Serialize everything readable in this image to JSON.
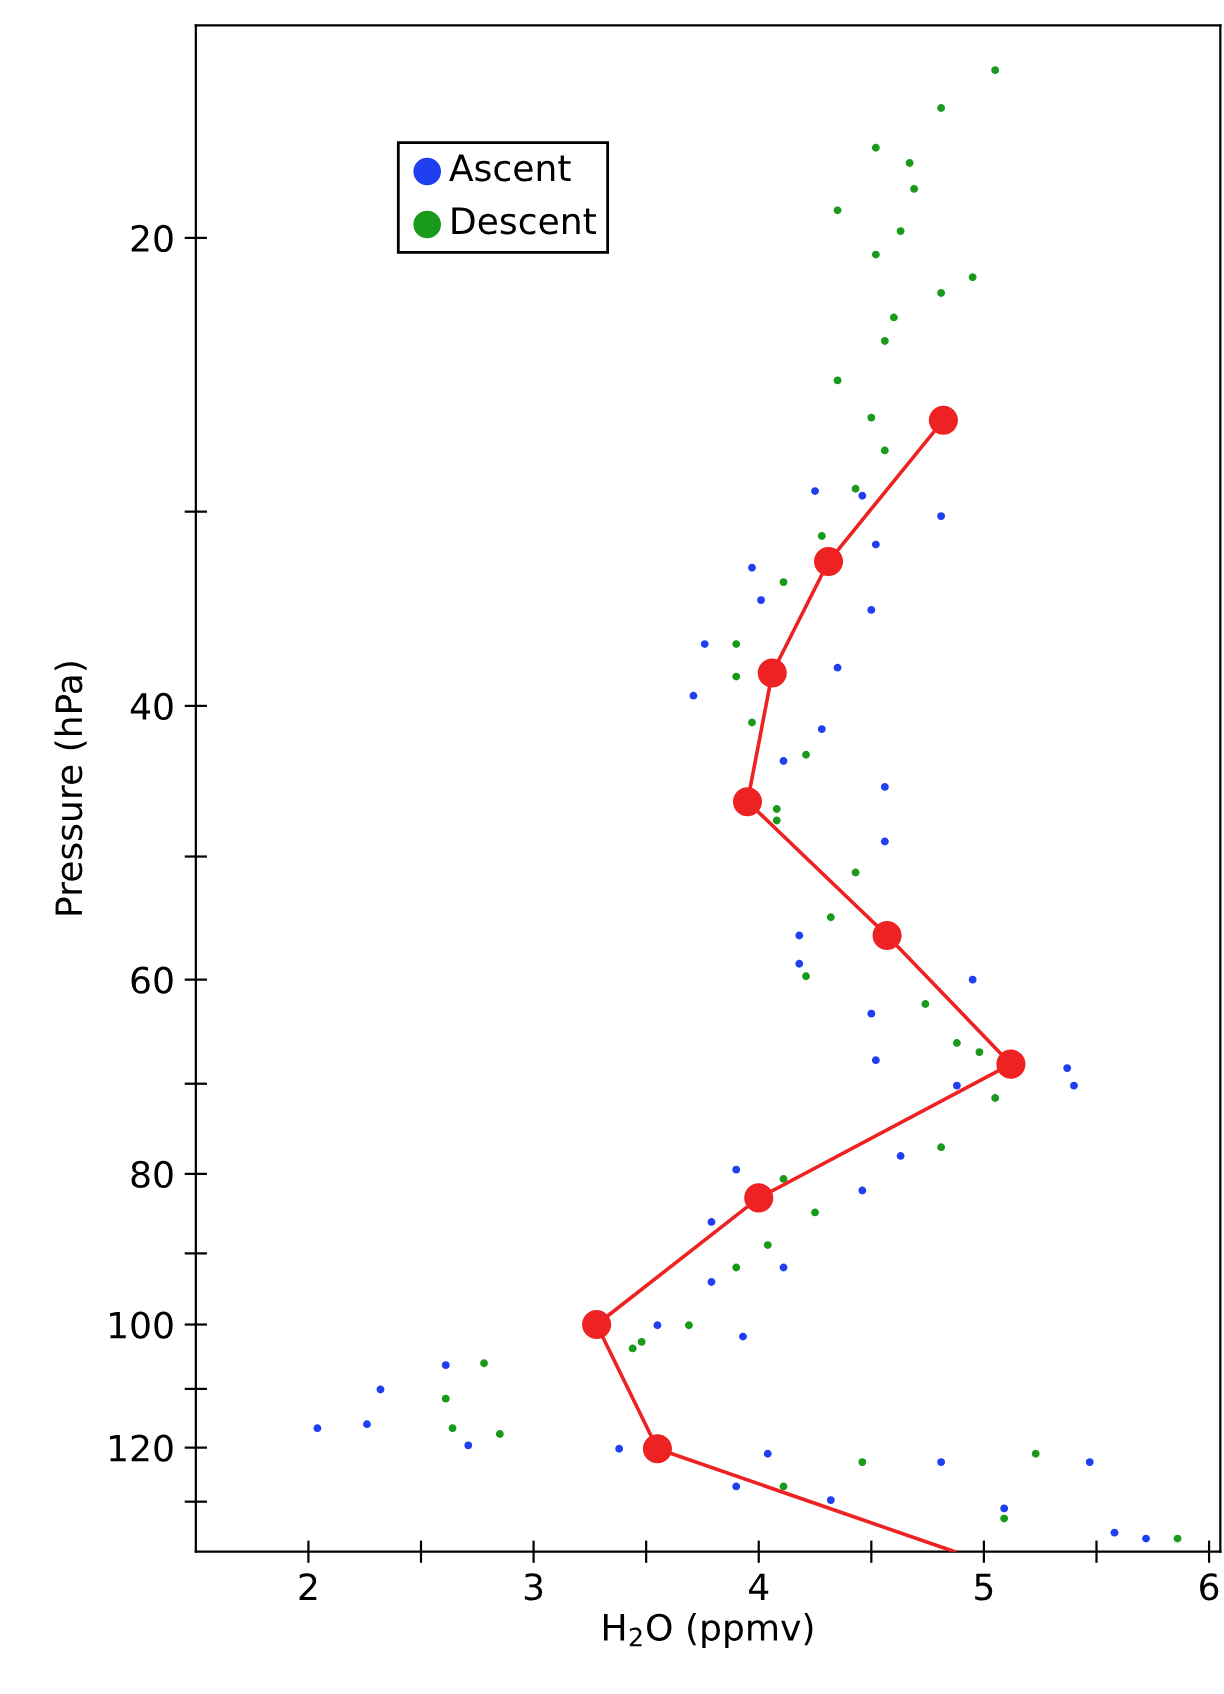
{
  "chart_data": {
    "type": "scatter",
    "xlabel": "H$_{2}$O (ppmv)",
    "ylabel": "Pressure (hPa)",
    "log": "y",
    "xlim": [
      1.5,
      6.05
    ],
    "ylim": [
      140,
      14.6
    ],
    "xticks": [
      2,
      {
        "value": 2.5,
        "label": null
      },
      3,
      {
        "value": 3.5,
        "label": null
      },
      4,
      {
        "value": 4.5,
        "label": null
      },
      5,
      {
        "value": 5.5,
        "label": null
      },
      6
    ],
    "yticks": [
      20,
      {
        "value": 30,
        "label": null
      },
      40,
      {
        "value": 50,
        "label": null
      },
      60,
      {
        "value": 70,
        "label": null
      },
      80,
      {
        "value": 90,
        "label": null
      },
      100,
      {
        "value": 110,
        "label": null
      },
      120,
      {
        "value": 130,
        "label": null
      }
    ],
    "grid": false,
    "legend": "top left",
    "series": [
      {
        "name": "Ascent",
        "color": "#1f3ff0",
        "marker": "circle",
        "x": [
          4.46,
          4.81,
          4.25,
          4.52,
          3.97,
          4.5,
          4.01,
          3.76,
          4.35,
          3.71,
          4.28,
          4.56,
          4.11,
          4.56,
          4.18,
          4.18,
          4.95,
          4.5,
          4.52,
          5.37,
          5.4,
          4.88,
          4.63,
          3.9,
          4.46,
          3.79,
          4.11,
          3.79,
          3.93,
          3.55,
          2.61,
          2.32,
          2.04,
          2.26,
          2.71,
          3.38,
          4.04,
          5.47,
          4.81,
          3.9,
          4.32,
          5.09,
          5.58,
          5.72
        ],
        "values": [
          29.3,
          30.2,
          29.1,
          31.5,
          32.6,
          34.7,
          34.2,
          36.5,
          37.8,
          39.4,
          41.4,
          45.1,
          43.4,
          48.9,
          56.2,
          58.6,
          60.0,
          63.1,
          67.6,
          68.4,
          70.2,
          70.2,
          77.9,
          79.5,
          82.0,
          85.9,
          91.9,
          93.9,
          101.8,
          100.1,
          106.2,
          110.1,
          116.6,
          115.9,
          119.6,
          120.2,
          121.1,
          122.6,
          122.6,
          127.1,
          129.7,
          131.3,
          136.1,
          137.3
        ]
      },
      {
        "name": "Descent",
        "color": "#1a9a1a",
        "marker": "circle",
        "x": [
          5.05,
          4.81,
          4.52,
          4.67,
          4.69,
          4.35,
          4.63,
          4.52,
          4.95,
          4.81,
          4.6,
          4.56,
          4.35,
          4.5,
          4.56,
          4.43,
          4.28,
          4.11,
          3.9,
          3.9,
          3.97,
          4.21,
          4.08,
          4.08,
          4.43,
          4.32,
          4.21,
          4.74,
          4.88,
          4.98,
          5.05,
          4.81,
          4.11,
          4.25,
          4.04,
          3.9,
          3.69,
          3.48,
          3.44,
          2.78,
          2.61,
          2.64,
          2.85,
          4.11,
          4.46,
          5.23,
          5.09,
          5.86
        ],
        "values": [
          15.6,
          16.5,
          17.5,
          17.9,
          18.6,
          19.2,
          19.8,
          20.5,
          21.2,
          21.7,
          22.5,
          23.3,
          24.7,
          26.1,
          27.4,
          29.0,
          31.1,
          33.3,
          36.5,
          38.3,
          41.0,
          43.0,
          46.6,
          47.4,
          51.2,
          54.7,
          59.7,
          62.2,
          65.9,
          66.8,
          71.5,
          76.9,
          80.6,
          84.7,
          88.9,
          91.9,
          100.1,
          102.6,
          103.6,
          105.9,
          111.6,
          116.6,
          117.6,
          127.1,
          122.6,
          121.1,
          133.3,
          137.3
        ]
      },
      {
        "type": "line",
        "color": "#ee2222",
        "line_style": "solid",
        "x": [
          4.82,
          4.31,
          4.06,
          3.95,
          4.57,
          5.12,
          4.0,
          3.28,
          3.55,
          4.87
        ],
        "values": [
          26.2,
          32.3,
          38.1,
          46.1,
          56.2,
          68.0,
          82.9,
          100,
          120.2,
          140
        ]
      },
      {
        "type": "scatter",
        "color": "#ee2222",
        "marker": "circle",
        "x": [
          4.82,
          4.31,
          4.06,
          3.95,
          4.57,
          5.12,
          4.0,
          3.28,
          3.55
        ],
        "values": [
          26.2,
          32.3,
          38.1,
          46.1,
          56.2,
          68.0,
          82.9,
          100,
          120.2
        ]
      }
    ]
  }
}
